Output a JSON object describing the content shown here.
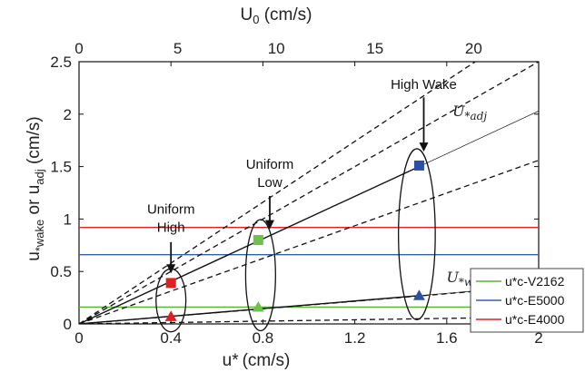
{
  "chart_data": {
    "type": "scatter",
    "xlabel": "u*",
    "xlabel_unit": "(cm/s)",
    "ylabel_main": "u",
    "ylabel_sub1": "*wake",
    "ylabel_mid": " or u",
    "ylabel_sub2": "adj",
    "ylabel_unit": " (cm/s)",
    "top_xlabel_main": "U",
    "top_xlabel_sub": "0",
    "top_xlabel_unit": " (cm/s)",
    "xlim": [
      0,
      2
    ],
    "ylim": [
      0,
      2.5
    ],
    "x_ticks": [
      "0",
      "0.4",
      "0.8",
      "1.2",
      "1.6",
      "2"
    ],
    "x_tick_values": [
      0,
      0.4,
      0.8,
      1.2,
      1.6,
      2
    ],
    "y_ticks": [
      "0",
      "0.5",
      "1",
      "1.5",
      "2",
      "2.5"
    ],
    "y_tick_values": [
      0,
      0.5,
      1,
      1.5,
      2,
      2.5
    ],
    "top_ticks": [
      "0",
      "5",
      "10",
      "15",
      "20"
    ],
    "top_tick_values": [
      0,
      5,
      10,
      15,
      20
    ],
    "top_xlim": [
      0,
      23.3
    ],
    "dashed_lines": [
      {
        "slope": 1.45
      },
      {
        "slope": 1.25
      },
      {
        "slope": 0.78
      },
      {
        "slope": 0.18
      },
      {
        "slope": 0.033
      }
    ],
    "solid_lines": [
      {
        "x": [
          0,
          1.48
        ],
        "y": [
          0,
          1.5
        ]
      },
      {
        "x": [
          0,
          1.48
        ],
        "y": [
          0,
          0.27
        ]
      }
    ],
    "thin_lines": [
      {
        "x": [
          1.48,
          2.0
        ],
        "y": [
          1.5,
          2.03
        ]
      },
      {
        "x": [
          1.48,
          2.0
        ],
        "y": [
          0.27,
          0.365
        ]
      }
    ],
    "horizontal_lines": [
      {
        "name": "u*c-V2162",
        "y": 0.16,
        "color": "#5ab52e"
      },
      {
        "name": "u*c-E5000",
        "y": 0.66,
        "color": "#3a5ea8"
      },
      {
        "name": "u*c-E4000",
        "y": 0.92,
        "color": "#e02020"
      }
    ],
    "points": [
      {
        "x": 0.4,
        "y": 0.39,
        "marker": "square",
        "color": "#e02020"
      },
      {
        "x": 0.4,
        "y": 0.07,
        "marker": "triangle",
        "color": "#e02020"
      },
      {
        "x": 0.78,
        "y": 0.8,
        "marker": "square",
        "color": "#6cc24a"
      },
      {
        "x": 0.78,
        "y": 0.16,
        "marker": "triangle",
        "color": "#6cc24a"
      },
      {
        "x": 1.48,
        "y": 1.51,
        "marker": "square",
        "color": "#2b4ea6"
      },
      {
        "x": 1.48,
        "y": 0.27,
        "marker": "triangle",
        "color": "#2b4ea6"
      }
    ],
    "ellipses": [
      {
        "cx": 0.4,
        "cy": 0.225,
        "rx": 0.065,
        "ry": 0.3
      },
      {
        "cx": 0.79,
        "cy": 0.465,
        "rx": 0.065,
        "ry": 0.53
      },
      {
        "cx": 1.47,
        "cy": 0.855,
        "rx": 0.08,
        "ry": 0.815
      }
    ],
    "annotations": [
      {
        "lines": [
          "Uniform",
          "High"
        ],
        "text_x": 0.4,
        "text_y": 1.05,
        "arrow_from": [
          0.4,
          0.78
        ],
        "arrow_to": [
          0.4,
          0.5
        ]
      },
      {
        "lines": [
          "Uniform",
          "Low"
        ],
        "text_x": 0.83,
        "text_y": 1.48,
        "arrow_from": [
          0.83,
          1.22
        ],
        "arrow_to": [
          0.83,
          0.92
        ]
      },
      {
        "lines": [
          "High Wake"
        ],
        "text_x": 1.5,
        "text_y": 2.24,
        "arrow_from": [
          1.5,
          2.16
        ],
        "arrow_to": [
          1.5,
          1.66
        ]
      }
    ],
    "series_labels": [
      {
        "main": "U",
        "sub": "*adj",
        "x": 1.7,
        "y": 1.98
      },
      {
        "main": "U",
        "sub": "*wake",
        "x": 1.7,
        "y": 0.4
      }
    ],
    "legend": {
      "placement": "right",
      "entries": [
        {
          "label": "u*c-V2162",
          "color": "#5ab52e"
        },
        {
          "label": "u*c-E5000",
          "color": "#3a5ea8"
        },
        {
          "label": "u*c-E4000",
          "color": "#e02020"
        }
      ]
    }
  }
}
